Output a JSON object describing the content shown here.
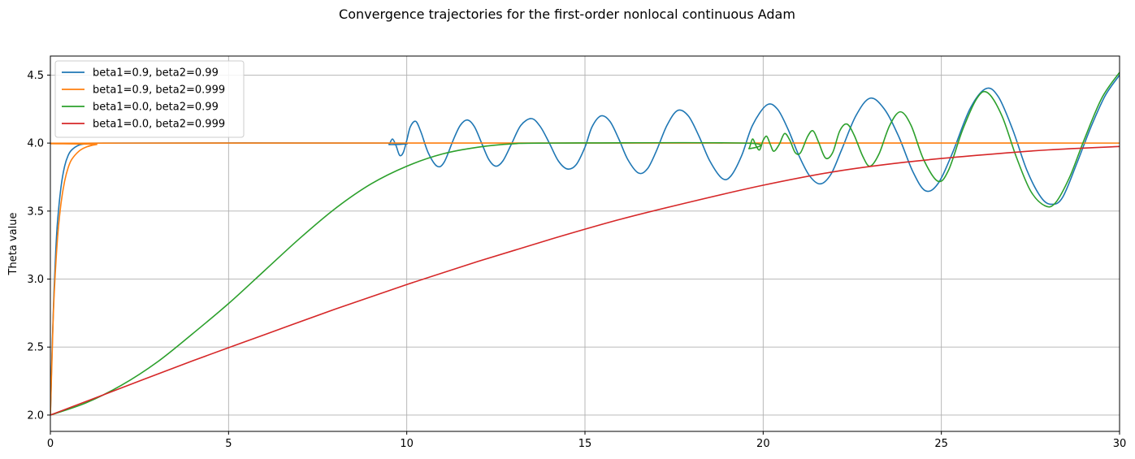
{
  "chart_data": {
    "type": "line",
    "title": "Convergence trajectories for the first-order nonlocal continuous Adam",
    "xlabel": "",
    "ylabel": "Theta value",
    "xlim": [
      0,
      30
    ],
    "ylim": [
      1.88,
      4.64
    ],
    "xticks": [
      0,
      5,
      10,
      15,
      20,
      25,
      30
    ],
    "xtick_labels": [
      "0",
      "5",
      "10",
      "15",
      "20",
      "25",
      "30"
    ],
    "yticks": [
      2.0,
      2.5,
      3.0,
      3.5,
      4.0,
      4.5
    ],
    "ytick_labels": [
      "2.0",
      "2.5",
      "3.0",
      "3.5",
      "4.0",
      "4.5"
    ],
    "grid": true,
    "legend_position": "top-left",
    "series": [
      {
        "name": "beta1=0.9, beta2=0.99",
        "color": "#1f77b4",
        "points": [
          [
            0,
            2.0
          ],
          [
            0.05,
            2.5
          ],
          [
            0.1,
            2.9
          ],
          [
            0.15,
            3.2
          ],
          [
            0.2,
            3.42
          ],
          [
            0.3,
            3.68
          ],
          [
            0.4,
            3.83
          ],
          [
            0.5,
            3.91
          ],
          [
            0.6,
            3.95
          ],
          [
            0.8,
            3.985
          ],
          [
            1.0,
            3.995
          ],
          [
            1.5,
            4.0
          ],
          [
            9.4,
            4.0
          ],
          [
            9.5,
            3.99
          ],
          [
            9.6,
            4.03
          ],
          [
            9.7,
            3.98
          ],
          [
            9.8,
            3.91
          ],
          [
            9.9,
            3.93
          ],
          [
            10.0,
            4.02
          ],
          [
            10.1,
            4.12
          ],
          [
            10.25,
            4.16
          ],
          [
            10.4,
            4.08
          ],
          [
            10.6,
            3.93
          ],
          [
            10.85,
            3.83
          ],
          [
            11.05,
            3.86
          ],
          [
            11.3,
            4.02
          ],
          [
            11.5,
            4.13
          ],
          [
            11.7,
            4.17
          ],
          [
            11.9,
            4.12
          ],
          [
            12.1,
            4.0
          ],
          [
            12.3,
            3.88
          ],
          [
            12.5,
            3.83
          ],
          [
            12.7,
            3.87
          ],
          [
            12.95,
            4.0
          ],
          [
            13.2,
            4.13
          ],
          [
            13.5,
            4.18
          ],
          [
            13.75,
            4.12
          ],
          [
            14.0,
            4.0
          ],
          [
            14.25,
            3.87
          ],
          [
            14.5,
            3.81
          ],
          [
            14.75,
            3.84
          ],
          [
            15.0,
            3.97
          ],
          [
            15.2,
            4.12
          ],
          [
            15.45,
            4.2
          ],
          [
            15.7,
            4.16
          ],
          [
            15.95,
            4.03
          ],
          [
            16.2,
            3.88
          ],
          [
            16.5,
            3.78
          ],
          [
            16.75,
            3.81
          ],
          [
            17.0,
            3.94
          ],
          [
            17.3,
            4.13
          ],
          [
            17.6,
            4.24
          ],
          [
            17.9,
            4.2
          ],
          [
            18.2,
            4.05
          ],
          [
            18.5,
            3.87
          ],
          [
            18.85,
            3.74
          ],
          [
            19.1,
            3.76
          ],
          [
            19.4,
            3.91
          ],
          [
            19.7,
            4.13
          ],
          [
            20.1,
            4.28
          ],
          [
            20.4,
            4.25
          ],
          [
            20.7,
            4.1
          ],
          [
            21.0,
            3.91
          ],
          [
            21.3,
            3.76
          ],
          [
            21.6,
            3.7
          ],
          [
            21.9,
            3.77
          ],
          [
            22.2,
            3.95
          ],
          [
            22.6,
            4.2
          ],
          [
            23.0,
            4.33
          ],
          [
            23.4,
            4.25
          ],
          [
            23.8,
            4.05
          ],
          [
            24.2,
            3.79
          ],
          [
            24.55,
            3.65
          ],
          [
            24.9,
            3.7
          ],
          [
            25.3,
            3.92
          ],
          [
            25.8,
            4.25
          ],
          [
            26.25,
            4.4
          ],
          [
            26.6,
            4.34
          ],
          [
            27.0,
            4.1
          ],
          [
            27.4,
            3.8
          ],
          [
            27.8,
            3.6
          ],
          [
            28.1,
            3.55
          ],
          [
            28.4,
            3.6
          ],
          [
            28.8,
            3.85
          ],
          [
            29.2,
            4.12
          ],
          [
            29.6,
            4.35
          ],
          [
            30.0,
            4.5
          ]
        ]
      },
      {
        "name": "beta1=0.9, beta2=0.999",
        "color": "#ff7f0e",
        "points": [
          [
            0,
            2.0
          ],
          [
            0.05,
            2.45
          ],
          [
            0.1,
            2.85
          ],
          [
            0.2,
            3.3
          ],
          [
            0.3,
            3.56
          ],
          [
            0.4,
            3.72
          ],
          [
            0.5,
            3.82
          ],
          [
            0.6,
            3.88
          ],
          [
            0.8,
            3.94
          ],
          [
            1.0,
            3.97
          ],
          [
            1.3,
            3.99
          ],
          [
            2.0,
            4.0
          ],
          [
            30.0,
            4.0
          ]
        ]
      },
      {
        "name": "beta1=0.0, beta2=0.99",
        "color": "#2ca02c",
        "points": [
          [
            0,
            2.0
          ],
          [
            1,
            2.09
          ],
          [
            2,
            2.22
          ],
          [
            3,
            2.39
          ],
          [
            4,
            2.6
          ],
          [
            5,
            2.82
          ],
          [
            6,
            3.06
          ],
          [
            7,
            3.3
          ],
          [
            8,
            3.52
          ],
          [
            9,
            3.7
          ],
          [
            10,
            3.83
          ],
          [
            11,
            3.92
          ],
          [
            12,
            3.97
          ],
          [
            13,
            3.995
          ],
          [
            14,
            4.0
          ],
          [
            19.5,
            4.0
          ],
          [
            19.6,
            3.96
          ],
          [
            19.7,
            4.03
          ],
          [
            19.8,
            3.98
          ],
          [
            19.9,
            3.95
          ],
          [
            20.0,
            4.02
          ],
          [
            20.1,
            4.05
          ],
          [
            20.2,
            3.99
          ],
          [
            20.3,
            3.94
          ],
          [
            20.45,
            3.99
          ],
          [
            20.6,
            4.07
          ],
          [
            20.75,
            4.02
          ],
          [
            20.9,
            3.93
          ],
          [
            21.05,
            3.93
          ],
          [
            21.25,
            4.05
          ],
          [
            21.4,
            4.09
          ],
          [
            21.55,
            4.01
          ],
          [
            21.75,
            3.89
          ],
          [
            21.95,
            3.93
          ],
          [
            22.15,
            4.09
          ],
          [
            22.35,
            4.14
          ],
          [
            22.55,
            4.06
          ],
          [
            22.8,
            3.9
          ],
          [
            23.0,
            3.83
          ],
          [
            23.25,
            3.92
          ],
          [
            23.55,
            4.13
          ],
          [
            23.85,
            4.23
          ],
          [
            24.15,
            4.13
          ],
          [
            24.5,
            3.88
          ],
          [
            24.9,
            3.72
          ],
          [
            25.2,
            3.8
          ],
          [
            25.6,
            4.1
          ],
          [
            26.0,
            4.33
          ],
          [
            26.3,
            4.37
          ],
          [
            26.7,
            4.2
          ],
          [
            27.1,
            3.9
          ],
          [
            27.5,
            3.65
          ],
          [
            27.9,
            3.54
          ],
          [
            28.2,
            3.56
          ],
          [
            28.6,
            3.75
          ],
          [
            29.0,
            4.02
          ],
          [
            29.5,
            4.33
          ],
          [
            30.0,
            4.52
          ]
        ]
      },
      {
        "name": "beta1=0.0, beta2=0.999",
        "color": "#d62728",
        "points": [
          [
            0,
            2.0
          ],
          [
            2,
            2.2
          ],
          [
            4,
            2.4
          ],
          [
            6,
            2.59
          ],
          [
            8,
            2.78
          ],
          [
            10,
            2.96
          ],
          [
            12,
            3.13
          ],
          [
            14,
            3.29
          ],
          [
            16,
            3.44
          ],
          [
            18,
            3.57
          ],
          [
            20,
            3.69
          ],
          [
            22,
            3.79
          ],
          [
            24,
            3.86
          ],
          [
            26,
            3.91
          ],
          [
            28,
            3.95
          ],
          [
            30,
            3.975
          ]
        ]
      }
    ]
  }
}
